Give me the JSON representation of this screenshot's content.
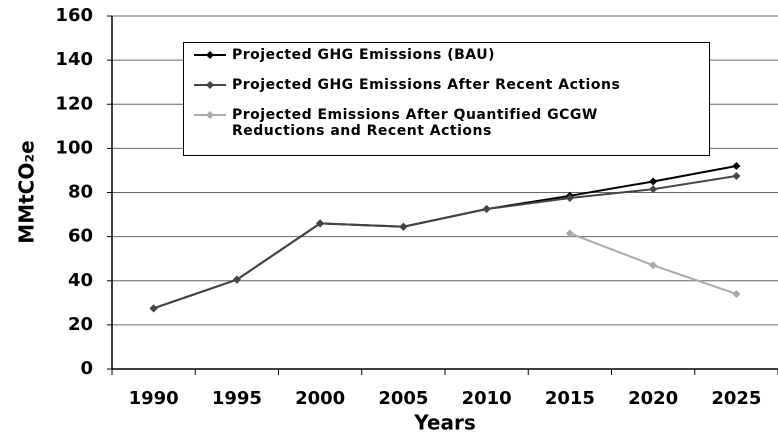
{
  "chart_data": {
    "type": "line",
    "x_label": "Years",
    "y_label": "MMtCO₂e",
    "categories": [
      "1990",
      "1995",
      "2000",
      "2005",
      "2010",
      "2015",
      "2020",
      "2025"
    ],
    "series": [
      {
        "name": "Projected GHG Emissions (BAU)",
        "color": "#000000",
        "values": [
          27.5,
          40.5,
          66,
          64.5,
          72.5,
          78.5,
          85,
          92
        ]
      },
      {
        "name": "Projected GHG Emissions After Recent Actions",
        "color": "#444444",
        "values": [
          27.5,
          40.5,
          66,
          64.5,
          72.5,
          77.5,
          81.5,
          87.5
        ]
      },
      {
        "name": "Projected Emissions After Quantified GCGW Reductions and Recent Actions",
        "color": "#aaaaaa",
        "values": [
          null,
          null,
          null,
          null,
          null,
          61.5,
          47,
          34
        ]
      }
    ],
    "ylim": [
      0,
      160
    ],
    "yticks": [
      0,
      20,
      40,
      60,
      80,
      100,
      120,
      140,
      160
    ],
    "grid": true
  }
}
